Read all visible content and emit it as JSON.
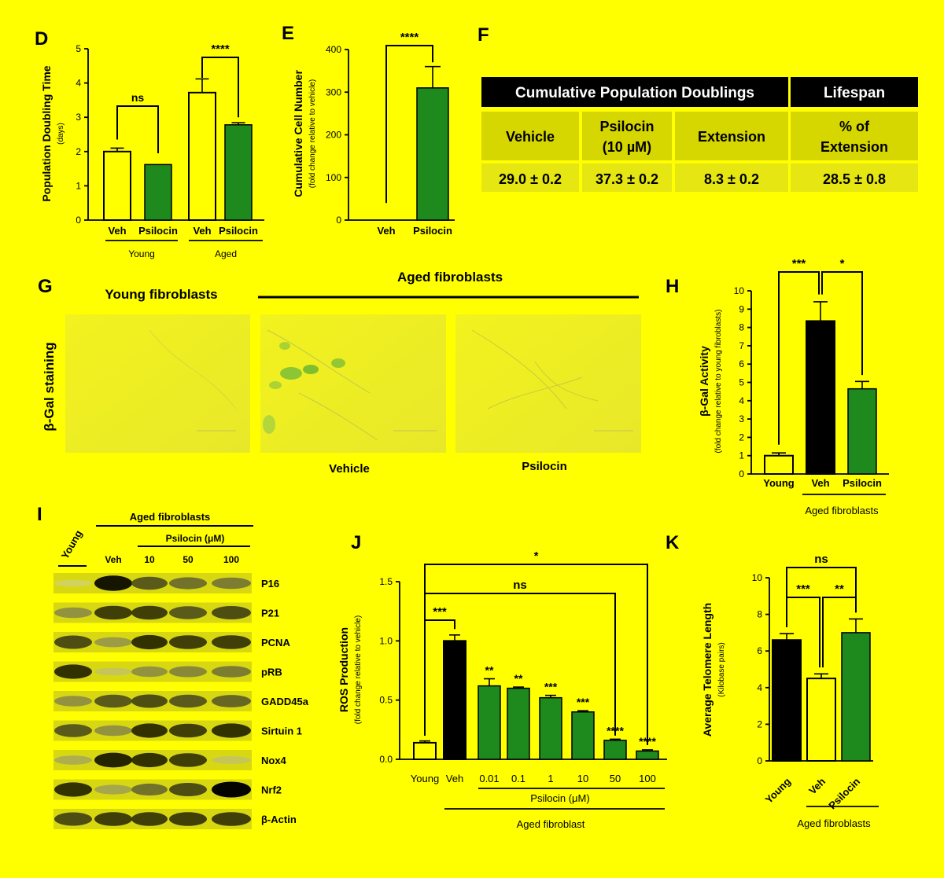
{
  "panels": {
    "D": "D",
    "E": "E",
    "F": "F",
    "G": "G",
    "H": "H",
    "I": "I",
    "J": "J",
    "K": "K"
  },
  "colors": {
    "background": "#FFFF00",
    "green": "#1E8A1E",
    "black": "#000000",
    "table_dark": "#000000",
    "table_cell": "#D6D600"
  },
  "chart_data": [
    {
      "id": "D",
      "type": "bar",
      "categories": [
        "Veh",
        "Psilocin",
        "Veh",
        "Psilocin"
      ],
      "groups": [
        {
          "label": "Young"
        },
        {
          "label": "Aged"
        }
      ],
      "values": [
        2.0,
        1.62,
        3.72,
        2.78
      ],
      "errors": [
        0.1,
        0.0,
        0.4,
        0.06
      ],
      "fills": [
        "open",
        "green",
        "open",
        "green"
      ],
      "ylabel": "Population Doubling Time",
      "ylabel_sub": "(days)",
      "ylim": [
        0,
        5
      ],
      "yticks": [
        "0",
        "1",
        "2",
        "3",
        "4",
        "5"
      ],
      "significance": [
        {
          "label": "ns"
        },
        {
          "label": "****"
        }
      ]
    },
    {
      "id": "E",
      "type": "bar",
      "categories": [
        "Veh",
        "Psilocin"
      ],
      "values": [
        0,
        310
      ],
      "errors": [
        0,
        50
      ],
      "fills": [
        "open",
        "green"
      ],
      "ylabel": "Cumulative Cell Number",
      "ylabel_sub": "(fold change relative to vehicle)",
      "ylim": [
        0,
        400
      ],
      "yticks": [
        "0",
        "100",
        "200",
        "300",
        "400"
      ],
      "significance": [
        {
          "label": "****"
        }
      ]
    },
    {
      "id": "F",
      "type": "table",
      "headers": [
        "Cumulative Population Doublings",
        "Lifespan"
      ],
      "subheaders": [
        "Vehicle",
        "Psilocin",
        "(10 µM)",
        "Extension",
        "% of",
        "Extension"
      ],
      "values": [
        "29.0 ± 0.2",
        "37.3 ± 0.2",
        "8.3 ± 0.2",
        "28.5 ± 0.8"
      ]
    },
    {
      "id": "H",
      "type": "bar",
      "categories": [
        "Young",
        "Veh",
        "Psilocin"
      ],
      "values": [
        1.0,
        8.35,
        4.65
      ],
      "errors": [
        0.15,
        1.05,
        0.4
      ],
      "fills": [
        "open",
        "black",
        "green"
      ],
      "ylabel": "β-Gal Activity",
      "ylabel_sub": "(fold change relative to young fibroblasts)",
      "ylim": [
        0,
        10
      ],
      "yticks": [
        "0",
        "1",
        "2",
        "3",
        "4",
        "5",
        "6",
        "7",
        "8",
        "9",
        "10"
      ],
      "group_label": "Aged fibroblasts",
      "significance": [
        {
          "label": "***"
        },
        {
          "label": "*"
        }
      ]
    },
    {
      "id": "J",
      "type": "bar",
      "categories": [
        "Young",
        "Veh",
        "0.01",
        "0.1",
        "1",
        "10",
        "50",
        "100"
      ],
      "values": [
        0.14,
        1.0,
        0.62,
        0.6,
        0.52,
        0.4,
        0.16,
        0.07
      ],
      "errors": [
        0.015,
        0.05,
        0.06,
        0.01,
        0.02,
        0.01,
        0.01,
        0.01
      ],
      "fills": [
        "open",
        "black",
        "green",
        "green",
        "green",
        "green",
        "green",
        "green"
      ],
      "stars": [
        "",
        "",
        "**",
        "**",
        "***",
        "***",
        "****",
        "****"
      ],
      "ylabel": "ROS Production",
      "ylabel_sub": "(fold change relative to vehicle)",
      "ylim": [
        0,
        1.5
      ],
      "yticks": [
        "0.0",
        "0.5",
        "1.0",
        "1.5"
      ],
      "sub_group_label": "Psilocin (μM)",
      "group_label": "Aged fibroblast",
      "significance": [
        {
          "label": "***"
        },
        {
          "label": "ns"
        },
        {
          "label": "*"
        }
      ]
    },
    {
      "id": "K",
      "type": "bar",
      "categories": [
        "Young",
        "Veh",
        "Psilocin"
      ],
      "values": [
        6.6,
        4.5,
        7.0
      ],
      "errors": [
        0.35,
        0.25,
        0.75
      ],
      "fills": [
        "black",
        "open",
        "green"
      ],
      "ylabel": "Average Telomere Length",
      "ylabel_sub": "(Kilobase pairs)",
      "ylim": [
        0,
        10
      ],
      "yticks": [
        "0",
        "2",
        "4",
        "6",
        "8",
        "10"
      ],
      "group_label": "Aged fibroblasts",
      "significance": [
        {
          "label": "ns"
        },
        {
          "label": "***"
        },
        {
          "label": "**"
        }
      ]
    }
  ],
  "panel_G": {
    "young_title": "Young fibroblasts",
    "aged_title": "Aged fibroblasts",
    "row_label": "β-Gal staining",
    "vehicle_label": "Vehicle",
    "psilocin_label": "Psilocin"
  },
  "panel_I": {
    "young_label": "Young",
    "aged_label": "Aged fibroblasts",
    "psilocin_label": "Psilocin (μM)",
    "lanes": [
      "Veh",
      "10",
      "50",
      "100"
    ],
    "bands": [
      {
        "label": "P16",
        "intensity": [
          0.05,
          0.95,
          0.7,
          0.6,
          0.55
        ]
      },
      {
        "label": "P21",
        "intensity": [
          0.45,
          0.8,
          0.8,
          0.7,
          0.75
        ]
      },
      {
        "label": "PCNA",
        "intensity": [
          0.75,
          0.4,
          0.85,
          0.8,
          0.8
        ]
      },
      {
        "label": "pRB",
        "intensity": [
          0.85,
          0.15,
          0.45,
          0.5,
          0.55
        ]
      },
      {
        "label": "GADD45a",
        "intensity": [
          0.45,
          0.7,
          0.75,
          0.7,
          0.65
        ]
      },
      {
        "label": "Sirtuin 1",
        "intensity": [
          0.7,
          0.45,
          0.85,
          0.8,
          0.85
        ]
      },
      {
        "label": "Nox4",
        "intensity": [
          0.3,
          0.9,
          0.85,
          0.8,
          0.15
        ]
      },
      {
        "label": "Nrf2",
        "intensity": [
          0.85,
          0.35,
          0.6,
          0.75,
          1.0
        ]
      },
      {
        "label": "β-Actin",
        "intensity": [
          0.75,
          0.8,
          0.8,
          0.8,
          0.8
        ]
      }
    ]
  }
}
